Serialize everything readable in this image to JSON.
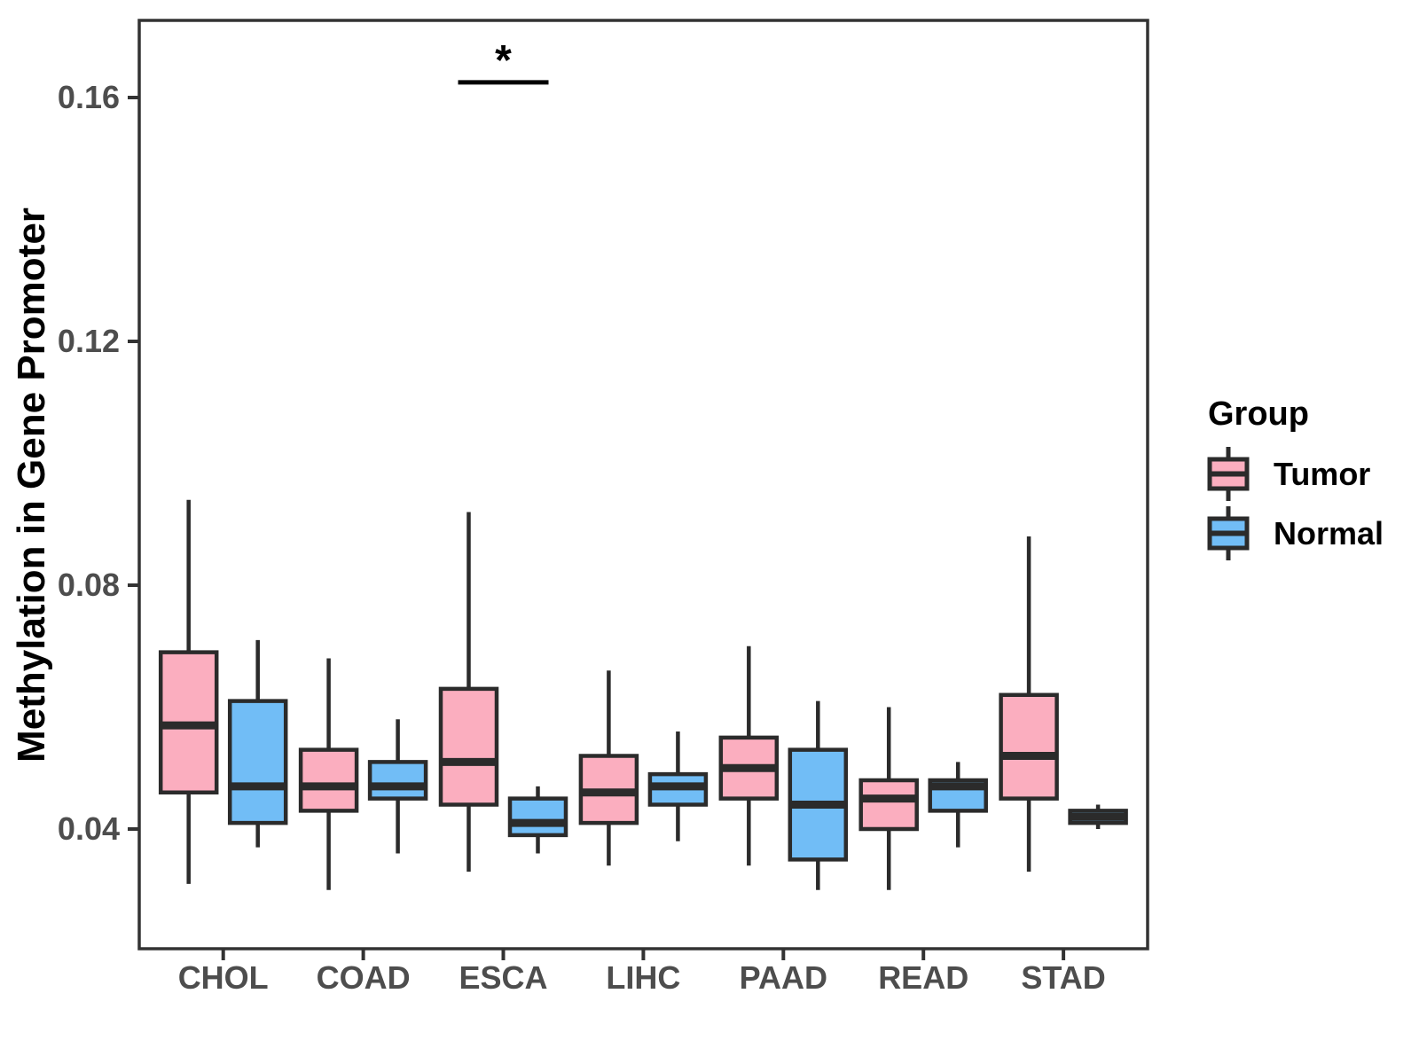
{
  "chart_data": {
    "type": "boxplot",
    "title": "",
    "xlabel": "",
    "ylabel": "Methylation in Gene Promoter",
    "categories": [
      "CHOL",
      "COAD",
      "ESCA",
      "LIHC",
      "PAAD",
      "READ",
      "STAD"
    ],
    "y_ticks": [
      "0.04",
      "0.08",
      "0.12",
      "0.16"
    ],
    "y_tick_values": [
      0.04,
      0.08,
      0.12,
      0.16
    ],
    "ylim": [
      0.021,
      0.173
    ],
    "grid": "off",
    "legend": {
      "title": "Group",
      "position": "right",
      "entries": [
        {
          "label": "Tumor",
          "color": "#FBAEBF"
        },
        {
          "label": "Normal",
          "color": "#71BDF6"
        }
      ]
    },
    "series": [
      {
        "name": "Tumor",
        "color": "#FBAEBF",
        "boxes": [
          {
            "category": "CHOL",
            "whisker_low": 0.031,
            "q1": 0.046,
            "median": 0.057,
            "q3": 0.069,
            "whisker_high": 0.094
          },
          {
            "category": "COAD",
            "whisker_low": 0.03,
            "q1": 0.043,
            "median": 0.047,
            "q3": 0.053,
            "whisker_high": 0.068
          },
          {
            "category": "ESCA",
            "whisker_low": 0.033,
            "q1": 0.044,
            "median": 0.051,
            "q3": 0.063,
            "whisker_high": 0.092
          },
          {
            "category": "LIHC",
            "whisker_low": 0.034,
            "q1": 0.041,
            "median": 0.046,
            "q3": 0.052,
            "whisker_high": 0.066
          },
          {
            "category": "PAAD",
            "whisker_low": 0.034,
            "q1": 0.045,
            "median": 0.05,
            "q3": 0.055,
            "whisker_high": 0.07
          },
          {
            "category": "READ",
            "whisker_low": 0.03,
            "q1": 0.04,
            "median": 0.045,
            "q3": 0.048,
            "whisker_high": 0.06
          },
          {
            "category": "STAD",
            "whisker_low": 0.033,
            "q1": 0.045,
            "median": 0.052,
            "q3": 0.062,
            "whisker_high": 0.088
          }
        ]
      },
      {
        "name": "Normal",
        "color": "#71BDF6",
        "boxes": [
          {
            "category": "CHOL",
            "whisker_low": 0.037,
            "q1": 0.041,
            "median": 0.047,
            "q3": 0.061,
            "whisker_high": 0.071
          },
          {
            "category": "COAD",
            "whisker_low": 0.036,
            "q1": 0.045,
            "median": 0.047,
            "q3": 0.051,
            "whisker_high": 0.058
          },
          {
            "category": "ESCA",
            "whisker_low": 0.036,
            "q1": 0.039,
            "median": 0.041,
            "q3": 0.045,
            "whisker_high": 0.047
          },
          {
            "category": "LIHC",
            "whisker_low": 0.038,
            "q1": 0.044,
            "median": 0.047,
            "q3": 0.049,
            "whisker_high": 0.056
          },
          {
            "category": "PAAD",
            "whisker_low": 0.03,
            "q1": 0.035,
            "median": 0.044,
            "q3": 0.053,
            "whisker_high": 0.061
          },
          {
            "category": "READ",
            "whisker_low": 0.037,
            "q1": 0.043,
            "median": 0.047,
            "q3": 0.048,
            "whisker_high": 0.051
          },
          {
            "category": "STAD",
            "whisker_low": 0.04,
            "q1": 0.041,
            "median": 0.042,
            "q3": 0.043,
            "whisker_high": 0.044
          }
        ]
      }
    ],
    "annotations": [
      {
        "type": "significance",
        "label": "*",
        "category": "ESCA",
        "between": [
          "Tumor",
          "Normal"
        ],
        "bar_y": 0.1625
      }
    ]
  },
  "style": {
    "box_stroke": "#2B2B2B",
    "panel_border": "#333333",
    "axis_text_color": "#4D4D4D",
    "title_color": "#000000",
    "background": "#FFFFFF"
  }
}
